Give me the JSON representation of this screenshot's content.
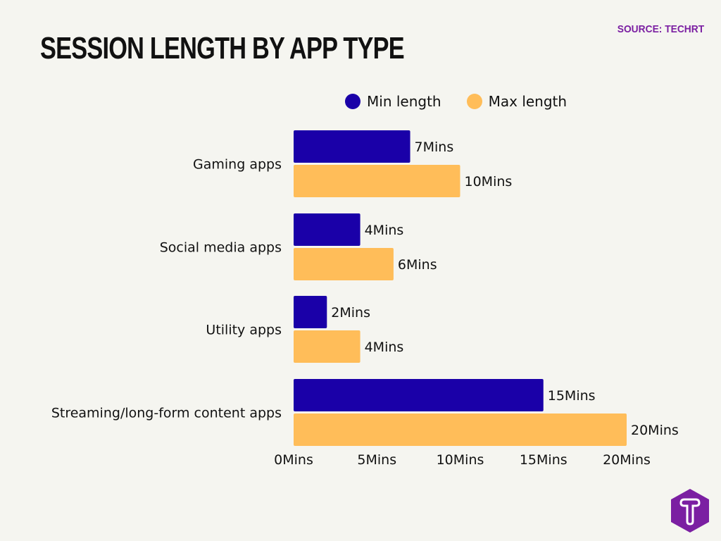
{
  "title": "SESSION LENGTH BY APP TYPE",
  "source": "SOURCE: TECHRT",
  "logo": "T",
  "colors": {
    "min": "#1a00a8",
    "max": "#ffbd59",
    "brand": "#7b1fa2"
  },
  "chart_data": {
    "type": "bar",
    "orientation": "horizontal",
    "title": "SESSION LENGTH BY APP TYPE",
    "categories": [
      "Gaming apps",
      "Social media apps",
      "Utility apps",
      "Streaming/long-form content apps"
    ],
    "series": [
      {
        "name": "Min length",
        "values": [
          7,
          4,
          2,
          15
        ],
        "labels": [
          "7Mins",
          "4Mins",
          "2Mins",
          "15Mins"
        ]
      },
      {
        "name": "Max length",
        "values": [
          10,
          6,
          4,
          20
        ],
        "labels": [
          "10Mins",
          "6Mins",
          "4Mins",
          "20Mins"
        ]
      }
    ],
    "xlim": [
      0,
      20
    ],
    "xticks": [
      0,
      5,
      10,
      15,
      20
    ],
    "xtick_labels": [
      "0Mins",
      "5Mins",
      "10Mins",
      "15Mins",
      "20Mins"
    ],
    "legend": "top",
    "grid": false
  }
}
